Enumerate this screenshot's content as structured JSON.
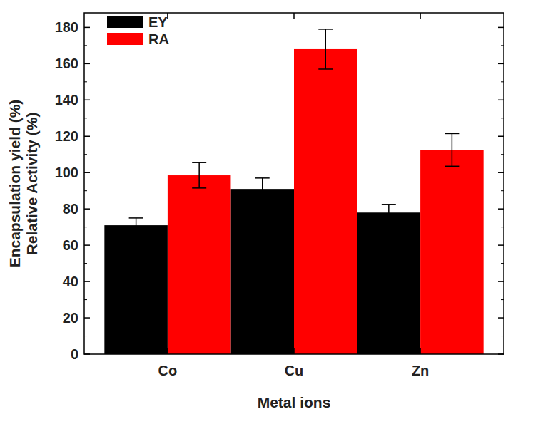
{
  "chart_data": {
    "type": "bar",
    "x_label": "Metal ions",
    "y_label": [
      "Encapsulation yield (%)",
      "Relative Activity (%)"
    ],
    "categories": [
      "Co",
      "Cu",
      "Zn"
    ],
    "series": [
      {
        "name": "EY",
        "color": "#000000",
        "values": [
          71,
          91,
          78
        ],
        "errors": [
          4,
          6,
          4.5
        ]
      },
      {
        "name": "RA",
        "color": "#ff0000",
        "values": [
          98.5,
          168,
          112.5
        ],
        "errors": [
          7,
          11,
          9
        ]
      }
    ],
    "ylim": [
      0,
      188
    ],
    "yticks": [
      0,
      20,
      40,
      60,
      80,
      100,
      120,
      140,
      160,
      180
    ],
    "legend": "upper-left",
    "grid": false
  }
}
